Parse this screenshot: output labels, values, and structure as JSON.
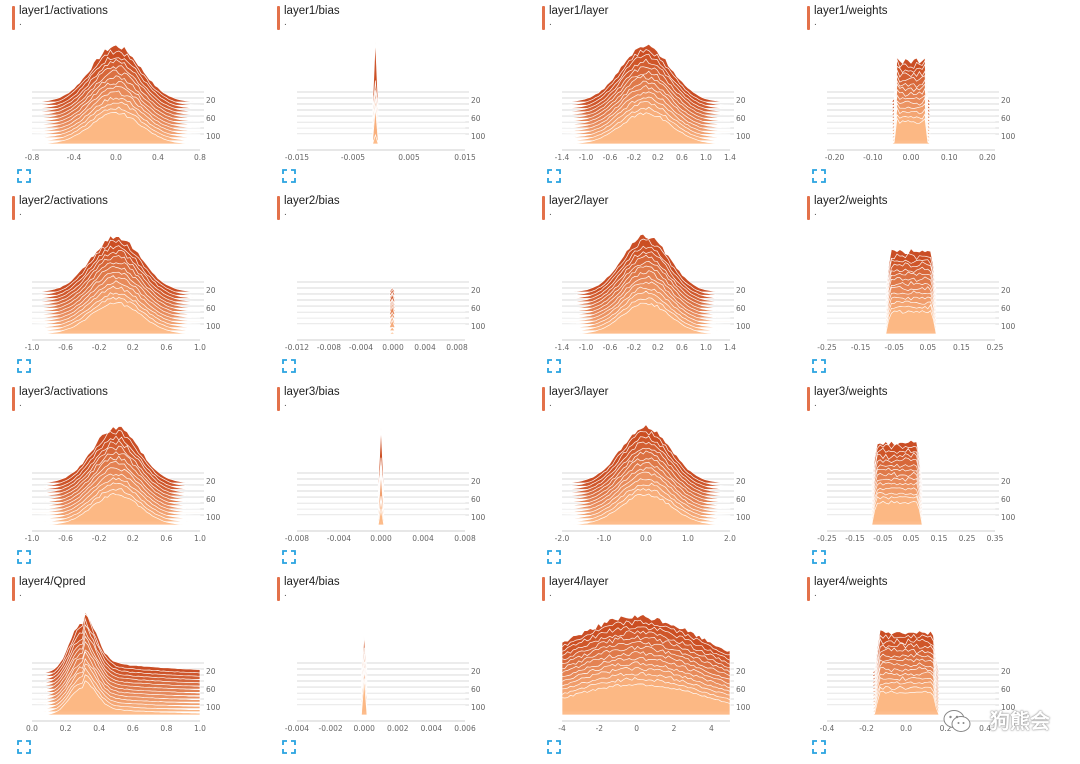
{
  "step_ticks": [
    "20",
    "60",
    "100"
  ],
  "colors": {
    "accent": "#e3714a",
    "top": "#c8451a",
    "bottom": "#fdb985",
    "grid": "#e6e6e6",
    "icon": "#29a3e0"
  },
  "icons": {
    "expand": "fullscreen-expand-icon"
  },
  "watermark": {
    "text": "狗熊会",
    "icon": "wechat-icon"
  },
  "charts": [
    {
      "title": "layer1/activations",
      "subtitle": ".",
      "x_ticks": [
        "-0.8",
        "-0.4",
        "0.0",
        "0.4",
        "0.8"
      ],
      "xlim": [
        -0.8,
        0.8
      ],
      "shape": "bell",
      "center": 0.0,
      "width": 0.3
    },
    {
      "title": "layer1/bias",
      "subtitle": ".",
      "x_ticks": [
        "-0.015",
        "-0.005",
        "0.005",
        "0.015"
      ],
      "xlim": [
        -0.015,
        0.015
      ],
      "shape": "spiky",
      "center": -0.001,
      "width": 0.004
    },
    {
      "title": "layer1/layer",
      "subtitle": ".",
      "x_ticks": [
        "-1.4",
        "-1.0",
        "-0.6",
        "-0.2",
        "0.2",
        "0.6",
        "1.0",
        "1.4"
      ],
      "xlim": [
        -1.4,
        1.4
      ],
      "shape": "bell",
      "center": 0.0,
      "width": 0.3
    },
    {
      "title": "layer1/weights",
      "subtitle": ".",
      "x_ticks": [
        "-0.20",
        "-0.10",
        "0.00",
        "0.10",
        "0.20"
      ],
      "xlim": [
        -0.22,
        0.22
      ],
      "shape": "flat",
      "center": 0.0,
      "width": 0.15
    },
    {
      "title": "layer2/activations",
      "subtitle": ".",
      "x_ticks": [
        "-1.0",
        "-0.6",
        "-0.2",
        "0.2",
        "0.6",
        "1.0"
      ],
      "xlim": [
        -1.0,
        1.0
      ],
      "shape": "bell",
      "center": 0.0,
      "width": 0.3
    },
    {
      "title": "layer2/bias",
      "subtitle": ".",
      "x_ticks": [
        "-0.012",
        "-0.008",
        "-0.004",
        "0.000",
        "0.004",
        "0.008"
      ],
      "xlim": [
        -0.012,
        0.009
      ],
      "shape": "spiky",
      "center": 0.0,
      "width": 0.003
    },
    {
      "title": "layer2/layer",
      "subtitle": ".",
      "x_ticks": [
        "-1.4",
        "-1.0",
        "-0.6",
        "-0.2",
        "0.2",
        "0.6",
        "1.0",
        "1.4"
      ],
      "xlim": [
        -1.4,
        1.4
      ],
      "shape": "bell",
      "center": 0.0,
      "width": 0.28
    },
    {
      "title": "layer2/weights",
      "subtitle": ".",
      "x_ticks": [
        "-0.25",
        "-0.15",
        "-0.05",
        "0.05",
        "0.15",
        "0.25"
      ],
      "xlim": [
        -0.25,
        0.25
      ],
      "shape": "flat",
      "center": 0.0,
      "width": 0.22
    },
    {
      "title": "layer3/activations",
      "subtitle": ".",
      "x_ticks": [
        "-1.0",
        "-0.6",
        "-0.2",
        "0.2",
        "0.6",
        "1.0"
      ],
      "xlim": [
        -1.0,
        1.0
      ],
      "shape": "bell",
      "center": 0.0,
      "width": 0.28
    },
    {
      "title": "layer3/bias",
      "subtitle": ".",
      "x_ticks": [
        "-0.008",
        "-0.004",
        "0.000",
        "0.004",
        "0.008"
      ],
      "xlim": [
        -0.008,
        0.008
      ],
      "shape": "spiky",
      "center": 0.0,
      "width": 0.002
    },
    {
      "title": "layer3/layer",
      "subtitle": ".",
      "x_ticks": [
        "-2.0",
        "-1.0",
        "0.0",
        "1.0",
        "2.0"
      ],
      "xlim": [
        -2.0,
        2.0
      ],
      "shape": "bell",
      "center": 0.0,
      "width": 0.3
    },
    {
      "title": "layer3/weights",
      "subtitle": ".",
      "x_ticks": [
        "-0.25",
        "-0.15",
        "-0.05",
        "0.05",
        "0.15",
        "0.25",
        "0.35"
      ],
      "xlim": [
        -0.25,
        0.35
      ],
      "shape": "flat",
      "center": 0.0,
      "width": 0.22
    },
    {
      "title": "layer4/Qpred",
      "subtitle": ".",
      "x_ticks": [
        "0.0",
        "0.2",
        "0.4",
        "0.6",
        "0.8",
        "1.0"
      ],
      "xlim": [
        0.0,
        1.0
      ],
      "shape": "skew",
      "center": 0.3,
      "width": 0.15
    },
    {
      "title": "layer4/bias",
      "subtitle": ".",
      "x_ticks": [
        "-0.004",
        "-0.002",
        "0.000",
        "0.002",
        "0.004",
        "0.006"
      ],
      "xlim": [
        -0.004,
        0.006
      ],
      "shape": "spiky",
      "center": 0.0,
      "width": 0.0015
    },
    {
      "title": "layer4/layer",
      "subtitle": ".",
      "x_ticks": [
        "-4",
        "-2",
        "0",
        "2",
        "4"
      ],
      "xlim": [
        -4,
        5
      ],
      "shape": "bell",
      "center": 0.0,
      "width": 0.8
    },
    {
      "title": "layer4/weights",
      "subtitle": ".",
      "x_ticks": [
        "-0.4",
        "-0.2",
        "0.0",
        "0.2",
        "0.4"
      ],
      "xlim": [
        -0.4,
        0.45
      ],
      "shape": "flat",
      "center": 0.0,
      "width": 0.28
    }
  ]
}
